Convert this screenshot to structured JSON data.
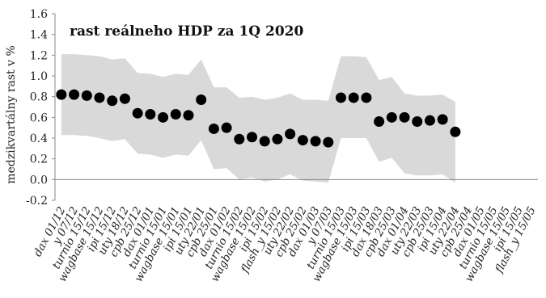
{
  "chart_data": {
    "type": "scatter",
    "title": "rast reálneho HDP za 1Q 2020",
    "ylabel": "medzikvartálny rast v %",
    "xlabel": "",
    "ylim": [
      -0.2,
      1.6
    ],
    "yticks": [
      "-0.2",
      "0.0",
      "0.2",
      "0.4",
      "0.6",
      "0.8",
      "1.0",
      "1.2",
      "1.4",
      "1.6"
    ],
    "grid": false,
    "legend": "none",
    "colors": {
      "band": "#d9d9d9",
      "point": "#000000"
    },
    "categories": [
      "dax 01/12",
      "y 07/12",
      "turnio 15/12",
      "wagbase 15/12",
      "ipi 15/12",
      "uty 18/12",
      "cpb 25/12",
      "dax 01/01",
      "turnio 15/01",
      "wagbase 15/01",
      "ipi 15/01",
      "uty 22/01",
      "cpb 25/01",
      "dax 01/02",
      "turnio 15/02",
      "wagbase 15/02",
      "ipi 15/02",
      "flash_y 15/02",
      "uty 22/02",
      "cpb 25/02",
      "dax 01/03",
      "y 07/03",
      "turnio 15/03",
      "wagbase 15/03",
      "ipi 15/03",
      "dax 18/03",
      "cpb 25/03",
      "dax 01/04",
      "uty 22/03",
      "cpb 25/03",
      "ipi 15/04",
      "uty 22/04",
      "cpb 25/04",
      "dax 01/05",
      "turnio 15/05",
      "wagbase 15/05",
      "ipi 15/05",
      "flash_y 15/05"
    ],
    "series": [
      {
        "role": "point",
        "values": [
          0.82,
          0.82,
          0.81,
          0.79,
          0.76,
          0.78,
          0.64,
          0.63,
          0.6,
          0.63,
          0.62,
          0.77,
          0.49,
          0.5,
          0.39,
          0.41,
          0.37,
          0.39,
          0.44,
          0.38,
          0.37,
          0.36,
          0.79,
          0.79,
          0.79,
          0.56,
          0.6,
          0.6,
          0.56,
          0.57,
          0.58,
          0.46,
          null,
          null,
          null,
          null,
          null,
          null
        ]
      },
      {
        "role": "band_upper",
        "values": [
          1.21,
          1.21,
          1.2,
          1.19,
          1.16,
          1.17,
          1.03,
          1.02,
          0.99,
          1.02,
          1.01,
          1.16,
          0.89,
          0.89,
          0.79,
          0.8,
          0.77,
          0.79,
          0.83,
          0.77,
          0.77,
          0.76,
          1.19,
          1.19,
          1.18,
          0.96,
          0.99,
          0.83,
          0.81,
          0.81,
          0.82,
          0.75,
          null,
          null,
          null,
          null,
          null,
          null
        ]
      },
      {
        "role": "band_lower",
        "values": [
          0.43,
          0.43,
          0.42,
          0.4,
          0.37,
          0.39,
          0.25,
          0.24,
          0.21,
          0.24,
          0.23,
          0.38,
          0.1,
          0.11,
          0.0,
          0.02,
          -0.02,
          0.0,
          0.05,
          -0.01,
          -0.02,
          -0.03,
          0.4,
          0.4,
          0.4,
          0.17,
          0.21,
          0.06,
          0.04,
          0.04,
          0.05,
          -0.03,
          null,
          null,
          null,
          null,
          null,
          null
        ]
      }
    ]
  }
}
